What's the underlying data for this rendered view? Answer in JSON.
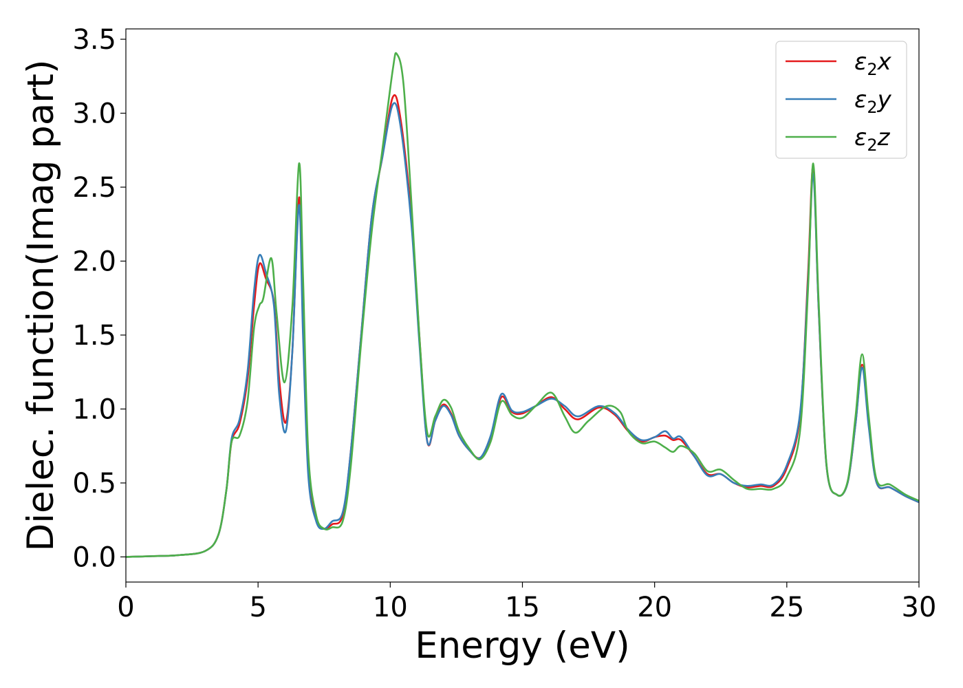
{
  "chart_data": {
    "type": "line",
    "title": "",
    "xlabel": "Energy (eV)",
    "ylabel": "Dielec. function(Imag part)",
    "xlim": [
      0,
      30
    ],
    "ylim": [
      -0.17,
      3.57
    ],
    "x_ticks": [
      0,
      5,
      10,
      15,
      20,
      25,
      30
    ],
    "x_tick_labels": [
      "0",
      "5",
      "10",
      "15",
      "20",
      "25",
      "30"
    ],
    "y_ticks": [
      0.0,
      0.5,
      1.0,
      1.5,
      2.0,
      2.5,
      3.0,
      3.5
    ],
    "y_tick_labels": [
      "0.0",
      "0.5",
      "1.0",
      "1.5",
      "2.0",
      "2.5",
      "3.0",
      "3.5"
    ],
    "grid": false,
    "legend_position": "top-right",
    "series": [
      {
        "name": "ε₂x",
        "legend_base": "ε",
        "legend_sub": "2",
        "legend_suffix": "x",
        "color": "#e41a1c",
        "points": [
          [
            0,
            0.0
          ],
          [
            1,
            0.005
          ],
          [
            2,
            0.012
          ],
          [
            3,
            0.04
          ],
          [
            3.5,
            0.15
          ],
          [
            3.8,
            0.45
          ],
          [
            4.0,
            0.78
          ],
          [
            4.3,
            0.9
          ],
          [
            4.6,
            1.2
          ],
          [
            4.85,
            1.7
          ],
          [
            5.05,
            1.98
          ],
          [
            5.3,
            1.88
          ],
          [
            5.6,
            1.72
          ],
          [
            5.8,
            1.2
          ],
          [
            6.05,
            0.91
          ],
          [
            6.3,
            1.4
          ],
          [
            6.55,
            2.43
          ],
          [
            6.7,
            1.6
          ],
          [
            6.9,
            0.6
          ],
          [
            7.2,
            0.25
          ],
          [
            7.5,
            0.19
          ],
          [
            7.8,
            0.22
          ],
          [
            8.2,
            0.28
          ],
          [
            8.5,
            0.7
          ],
          [
            8.9,
            1.5
          ],
          [
            9.3,
            2.3
          ],
          [
            9.7,
            2.7
          ],
          [
            10.1,
            3.11
          ],
          [
            10.4,
            2.95
          ],
          [
            10.8,
            2.3
          ],
          [
            11.1,
            1.5
          ],
          [
            11.4,
            0.78
          ],
          [
            11.7,
            0.92
          ],
          [
            12.0,
            1.03
          ],
          [
            12.3,
            0.97
          ],
          [
            12.6,
            0.82
          ],
          [
            13.0,
            0.72
          ],
          [
            13.4,
            0.67
          ],
          [
            13.8,
            0.8
          ],
          [
            14.2,
            1.08
          ],
          [
            14.6,
            0.98
          ],
          [
            15.0,
            0.97
          ],
          [
            15.5,
            1.02
          ],
          [
            16.1,
            1.08
          ],
          [
            16.6,
            1.0
          ],
          [
            17.1,
            0.93
          ],
          [
            17.9,
            1.01
          ],
          [
            18.5,
            0.96
          ],
          [
            19.0,
            0.85
          ],
          [
            19.5,
            0.78
          ],
          [
            20.0,
            0.81
          ],
          [
            20.4,
            0.82
          ],
          [
            20.7,
            0.79
          ],
          [
            21.0,
            0.79
          ],
          [
            21.5,
            0.68
          ],
          [
            22.0,
            0.56
          ],
          [
            22.5,
            0.56
          ],
          [
            23.0,
            0.5
          ],
          [
            23.5,
            0.47
          ],
          [
            24.0,
            0.48
          ],
          [
            24.5,
            0.48
          ],
          [
            25.0,
            0.6
          ],
          [
            25.5,
            0.95
          ],
          [
            25.8,
            1.9
          ],
          [
            26.0,
            2.64
          ],
          [
            26.2,
            1.7
          ],
          [
            26.5,
            0.62
          ],
          [
            26.9,
            0.42
          ],
          [
            27.3,
            0.5
          ],
          [
            27.6,
            0.9
          ],
          [
            27.85,
            1.3
          ],
          [
            28.1,
            0.9
          ],
          [
            28.4,
            0.5
          ],
          [
            28.9,
            0.47
          ],
          [
            29.5,
            0.41
          ],
          [
            30,
            0.37
          ]
        ]
      },
      {
        "name": "ε₂y",
        "legend_base": "ε",
        "legend_sub": "2",
        "legend_suffix": "y",
        "color": "#377eb8",
        "points": [
          [
            0,
            0.0
          ],
          [
            1,
            0.005
          ],
          [
            2,
            0.012
          ],
          [
            3,
            0.04
          ],
          [
            3.5,
            0.15
          ],
          [
            3.8,
            0.45
          ],
          [
            4.0,
            0.8
          ],
          [
            4.3,
            0.93
          ],
          [
            4.6,
            1.25
          ],
          [
            4.85,
            1.8
          ],
          [
            5.05,
            2.04
          ],
          [
            5.3,
            1.92
          ],
          [
            5.6,
            1.7
          ],
          [
            5.8,
            1.1
          ],
          [
            6.05,
            0.85
          ],
          [
            6.3,
            1.4
          ],
          [
            6.55,
            2.38
          ],
          [
            6.7,
            1.5
          ],
          [
            6.9,
            0.55
          ],
          [
            7.2,
            0.24
          ],
          [
            7.5,
            0.19
          ],
          [
            7.8,
            0.24
          ],
          [
            8.2,
            0.3
          ],
          [
            8.5,
            0.7
          ],
          [
            8.9,
            1.5
          ],
          [
            9.3,
            2.3
          ],
          [
            9.7,
            2.7
          ],
          [
            10.1,
            3.06
          ],
          [
            10.4,
            2.9
          ],
          [
            10.8,
            2.25
          ],
          [
            11.1,
            1.45
          ],
          [
            11.4,
            0.78
          ],
          [
            11.7,
            0.92
          ],
          [
            12.0,
            1.02
          ],
          [
            12.3,
            0.96
          ],
          [
            12.6,
            0.82
          ],
          [
            13.0,
            0.72
          ],
          [
            13.4,
            0.67
          ],
          [
            13.8,
            0.82
          ],
          [
            14.2,
            1.1
          ],
          [
            14.6,
            0.99
          ],
          [
            15.0,
            0.98
          ],
          [
            15.5,
            1.02
          ],
          [
            16.1,
            1.07
          ],
          [
            16.6,
            1.02
          ],
          [
            17.1,
            0.95
          ],
          [
            17.9,
            1.02
          ],
          [
            18.5,
            0.97
          ],
          [
            19.0,
            0.86
          ],
          [
            19.5,
            0.79
          ],
          [
            20.0,
            0.81
          ],
          [
            20.4,
            0.85
          ],
          [
            20.7,
            0.8
          ],
          [
            21.0,
            0.81
          ],
          [
            21.5,
            0.68
          ],
          [
            22.0,
            0.55
          ],
          [
            22.5,
            0.56
          ],
          [
            23.0,
            0.5
          ],
          [
            23.5,
            0.48
          ],
          [
            24.0,
            0.49
          ],
          [
            24.5,
            0.49
          ],
          [
            25.0,
            0.62
          ],
          [
            25.5,
            0.97
          ],
          [
            25.8,
            1.85
          ],
          [
            26.0,
            2.59
          ],
          [
            26.2,
            1.7
          ],
          [
            26.5,
            0.62
          ],
          [
            26.9,
            0.42
          ],
          [
            27.3,
            0.5
          ],
          [
            27.6,
            0.9
          ],
          [
            27.85,
            1.28
          ],
          [
            28.1,
            0.88
          ],
          [
            28.4,
            0.5
          ],
          [
            28.9,
            0.47
          ],
          [
            29.5,
            0.41
          ],
          [
            30,
            0.37
          ]
        ]
      },
      {
        "name": "ε₂z",
        "legend_base": "ε",
        "legend_sub": "2",
        "legend_suffix": "z",
        "color": "#4daf4a",
        "points": [
          [
            0,
            0.0
          ],
          [
            1,
            0.005
          ],
          [
            2,
            0.012
          ],
          [
            3,
            0.04
          ],
          [
            3.5,
            0.15
          ],
          [
            3.8,
            0.45
          ],
          [
            4.0,
            0.78
          ],
          [
            4.3,
            0.82
          ],
          [
            4.6,
            1.05
          ],
          [
            4.85,
            1.55
          ],
          [
            5.05,
            1.7
          ],
          [
            5.2,
            1.75
          ],
          [
            5.5,
            2.02
          ],
          [
            5.7,
            1.65
          ],
          [
            6.0,
            1.18
          ],
          [
            6.3,
            1.7
          ],
          [
            6.55,
            2.66
          ],
          [
            6.7,
            1.9
          ],
          [
            6.9,
            0.7
          ],
          [
            7.2,
            0.28
          ],
          [
            7.5,
            0.19
          ],
          [
            7.8,
            0.2
          ],
          [
            8.2,
            0.24
          ],
          [
            8.5,
            0.6
          ],
          [
            8.9,
            1.45
          ],
          [
            9.3,
            2.2
          ],
          [
            9.7,
            2.75
          ],
          [
            10.1,
            3.3
          ],
          [
            10.25,
            3.4
          ],
          [
            10.5,
            3.2
          ],
          [
            10.8,
            2.4
          ],
          [
            11.1,
            1.5
          ],
          [
            11.4,
            0.84
          ],
          [
            11.7,
            0.95
          ],
          [
            12.0,
            1.06
          ],
          [
            12.3,
            1.01
          ],
          [
            12.6,
            0.85
          ],
          [
            13.0,
            0.73
          ],
          [
            13.4,
            0.66
          ],
          [
            13.8,
            0.78
          ],
          [
            14.2,
            1.05
          ],
          [
            14.6,
            0.96
          ],
          [
            15.0,
            0.94
          ],
          [
            15.5,
            1.02
          ],
          [
            16.1,
            1.11
          ],
          [
            16.6,
            0.95
          ],
          [
            17.0,
            0.84
          ],
          [
            17.5,
            0.92
          ],
          [
            18.2,
            1.02
          ],
          [
            18.7,
            0.98
          ],
          [
            19.0,
            0.85
          ],
          [
            19.5,
            0.77
          ],
          [
            20.0,
            0.78
          ],
          [
            20.4,
            0.74
          ],
          [
            20.7,
            0.71
          ],
          [
            21.0,
            0.75
          ],
          [
            21.5,
            0.7
          ],
          [
            22.0,
            0.58
          ],
          [
            22.5,
            0.59
          ],
          [
            23.0,
            0.52
          ],
          [
            23.5,
            0.46
          ],
          [
            24.0,
            0.46
          ],
          [
            24.5,
            0.46
          ],
          [
            25.0,
            0.54
          ],
          [
            25.5,
            0.85
          ],
          [
            25.8,
            1.8
          ],
          [
            26.0,
            2.66
          ],
          [
            26.2,
            1.75
          ],
          [
            26.5,
            0.63
          ],
          [
            26.9,
            0.42
          ],
          [
            27.3,
            0.51
          ],
          [
            27.6,
            0.95
          ],
          [
            27.85,
            1.37
          ],
          [
            28.1,
            0.95
          ],
          [
            28.4,
            0.52
          ],
          [
            28.9,
            0.49
          ],
          [
            29.5,
            0.42
          ],
          [
            30,
            0.38
          ]
        ]
      }
    ]
  }
}
